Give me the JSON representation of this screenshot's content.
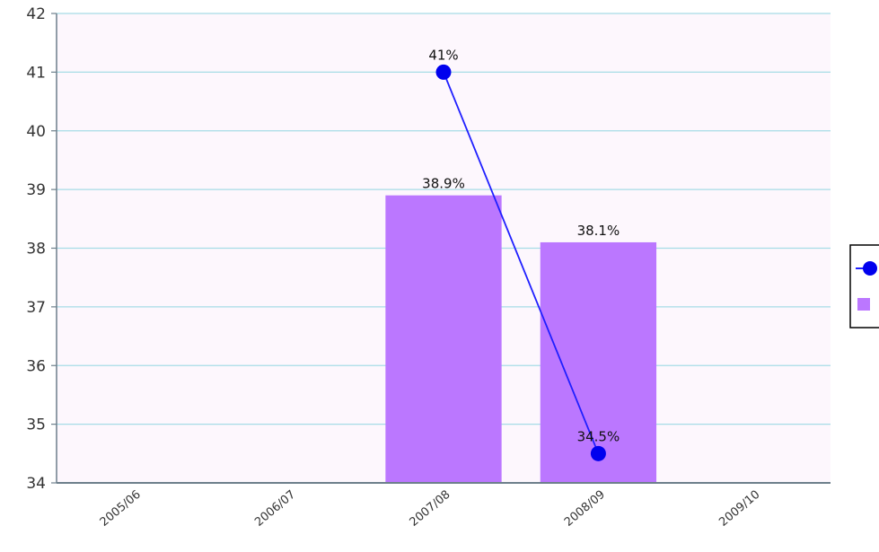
{
  "chart_data": {
    "type": "bar",
    "title": "",
    "xlabel": "",
    "ylabel": "",
    "categories": [
      "2005/06",
      "2006/07",
      "2007/08",
      "2008/09",
      "2009/10"
    ],
    "ylim": [
      34,
      42
    ],
    "yticks": [
      "34",
      "35",
      "36",
      "37",
      "38",
      "39",
      "40",
      "41",
      "42"
    ],
    "grid": true,
    "legend_position": "right",
    "series": [
      {
        "type": "bar",
        "values": [
          null,
          null,
          38.9,
          38.1,
          null
        ],
        "labels": [
          "",
          "",
          "38.9%",
          "38.1%",
          ""
        ],
        "color": "#bb77ff"
      },
      {
        "type": "line",
        "values": [
          null,
          null,
          41,
          34.5,
          null
        ],
        "labels": [
          "",
          "",
          "41%",
          "34.5%",
          ""
        ],
        "color": "#0000ff"
      }
    ]
  },
  "colors": {
    "plot_background": "#fdf7fd",
    "gridline": "#a6dce6",
    "axis": "#6d7f8b",
    "bar": "#bb77ff",
    "line": "#1f1fff",
    "marker": "#0000ee"
  }
}
